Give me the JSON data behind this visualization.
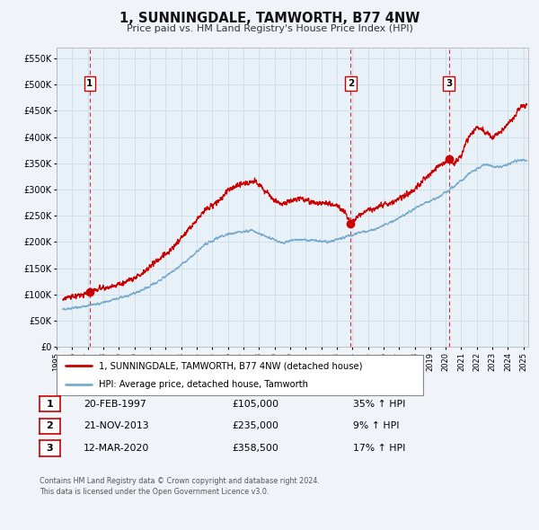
{
  "title": "1, SUNNINGDALE, TAMWORTH, B77 4NW",
  "subtitle": "Price paid vs. HM Land Registry's House Price Index (HPI)",
  "legend_label_red": "1, SUNNINGDALE, TAMWORTH, B77 4NW (detached house)",
  "legend_label_blue": "HPI: Average price, detached house, Tamworth",
  "footer": "Contains HM Land Registry data © Crown copyright and database right 2024.\nThis data is licensed under the Open Government Licence v3.0.",
  "sales": [
    {
      "num": 1,
      "date": "20-FEB-1997",
      "price": 105000,
      "year": 1997.13,
      "pct": "35% ↑ HPI"
    },
    {
      "num": 2,
      "date": "21-NOV-2013",
      "price": 235000,
      "year": 2013.89,
      "pct": "9% ↑ HPI"
    },
    {
      "num": 3,
      "date": "12-MAR-2020",
      "price": 358500,
      "year": 2020.2,
      "pct": "17% ↑ HPI"
    }
  ],
  "red_color": "#cc0000",
  "blue_color": "#77aacc",
  "grid_color": "#ccdde8",
  "background_color": "#f0f4f8",
  "plot_bg_color": "#e8f0f8",
  "ylim": [
    0,
    570000
  ],
  "yticks": [
    0,
    50000,
    100000,
    150000,
    200000,
    250000,
    300000,
    350000,
    400000,
    450000,
    500000,
    550000
  ],
  "xlim_start": 1995.4,
  "xlim_end": 2025.3,
  "xticks": [
    1995,
    1996,
    1997,
    1998,
    1999,
    2000,
    2001,
    2002,
    2003,
    2004,
    2005,
    2006,
    2007,
    2008,
    2009,
    2010,
    2011,
    2012,
    2013,
    2014,
    2015,
    2016,
    2017,
    2018,
    2019,
    2020,
    2021,
    2022,
    2023,
    2024,
    2025
  ]
}
